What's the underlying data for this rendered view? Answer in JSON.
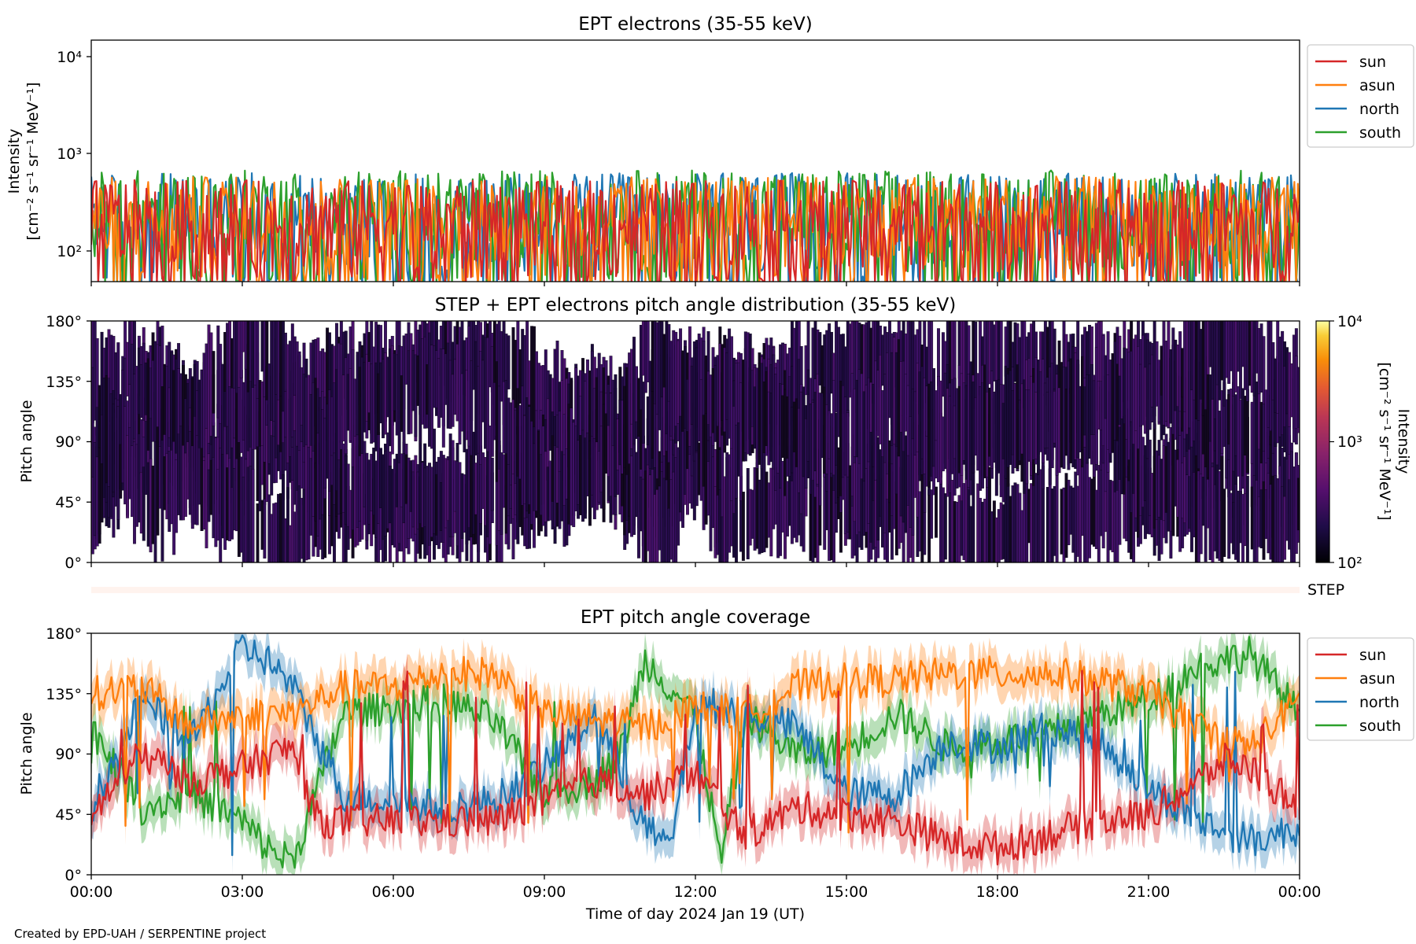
{
  "footer": {
    "credit": "Created by EPD-UAH / SERPENTINE project"
  },
  "colors": {
    "sun": "#d62728",
    "asun": "#ff7f0e",
    "north": "#1f77b4",
    "south": "#2ca02c"
  },
  "xaxis": {
    "label": "Time of day 2024 Jan 19 (UT)",
    "ticks": [
      "00:00",
      "03:00",
      "06:00",
      "09:00",
      "12:00",
      "15:00",
      "18:00",
      "21:00",
      "00:00"
    ],
    "range_hours": [
      0,
      24
    ]
  },
  "panels": {
    "intensity": {
      "title": "EPT electrons (35-55 keV)",
      "ylabel_line1": "Intensity",
      "ylabel_line2": "[cm⁻² s⁻¹ sr⁻¹ MeV⁻¹]",
      "yticks": [
        "10⁴",
        "10³",
        "10²"
      ],
      "legend": [
        "sun",
        "asun",
        "north",
        "south"
      ]
    },
    "pad": {
      "title": "STEP + EPT electrons pitch angle distribution (35-55 keV)",
      "ylabel": "Pitch angle",
      "yticks": [
        "180°",
        "135°",
        "90°",
        "45°",
        "0°"
      ],
      "colorbar": {
        "label_line1": "Intensity",
        "label_line2": "[cm⁻² s⁻¹ sr⁻¹ MeV⁻¹]",
        "ticks": [
          "10⁴",
          "10³",
          "10²"
        ]
      }
    },
    "step": {
      "label": "STEP"
    },
    "coverage": {
      "title": "EPT pitch angle coverage",
      "ylabel": "Pitch angle",
      "yticks": [
        "180°",
        "135°",
        "90°",
        "45°",
        "0°"
      ],
      "legend": [
        "sun",
        "asun",
        "north",
        "south"
      ]
    }
  },
  "chart_data": [
    {
      "type": "line",
      "title": "EPT electrons (35-55 keV)",
      "xlabel": "",
      "ylabel": "Intensity [cm⁻² s⁻¹ sr⁻¹ MeV⁻¹]",
      "yscale": "log",
      "ylim": [
        50,
        15000
      ],
      "xlim_hours": [
        0,
        24
      ],
      "legend_position": "outside-right-top",
      "series": [
        {
          "name": "sun",
          "typical_range": [
            50,
            550
          ]
        },
        {
          "name": "asun",
          "typical_range": [
            50,
            600
          ]
        },
        {
          "name": "north",
          "typical_range": [
            50,
            650
          ]
        },
        {
          "name": "south",
          "typical_range": [
            50,
            700
          ]
        }
      ]
    },
    {
      "type": "heatmap",
      "title": "STEP + EPT electrons pitch angle distribution (35-55 keV)",
      "ylabel": "Pitch angle",
      "ylim_deg": [
        0,
        180
      ],
      "color_scale": "log",
      "color_range": [
        100,
        10000
      ],
      "colormap": "inferno"
    },
    {
      "type": "line",
      "title": "EPT pitch angle coverage",
      "xlabel": "Time of day 2024 Jan 19 (UT)",
      "ylabel": "Pitch angle",
      "ylim_deg": [
        0,
        180
      ],
      "xlim_hours": [
        0,
        24
      ],
      "legend_position": "outside-right-top",
      "series": [
        {
          "name": "sun",
          "x": [
            0,
            1,
            2,
            3,
            4,
            4.5,
            6,
            8,
            9,
            10,
            11,
            12,
            13,
            14,
            15,
            16,
            17,
            18,
            19,
            20,
            21,
            22,
            22.5,
            23,
            24
          ],
          "y": [
            45,
            90,
            70,
            80,
            95,
            40,
            40,
            40,
            55,
            70,
            60,
            75,
            30,
            50,
            45,
            40,
            25,
            20,
            30,
            40,
            45,
            70,
            85,
            80,
            50
          ]
        },
        {
          "name": "asun",
          "x": [
            0,
            1,
            2,
            3,
            4,
            5,
            6,
            7,
            8,
            9,
            10,
            11,
            12,
            13,
            14,
            15,
            16,
            17,
            18,
            19,
            20,
            21,
            22,
            23,
            24
          ],
          "y": [
            135,
            140,
            110,
            120,
            120,
            140,
            140,
            150,
            150,
            120,
            115,
            110,
            125,
            120,
            140,
            145,
            145,
            150,
            150,
            150,
            145,
            135,
            110,
            95,
            130
          ]
        },
        {
          "name": "north",
          "x": [
            0,
            1,
            2,
            3,
            3.5,
            4,
            5,
            6,
            7,
            8,
            9,
            10,
            11,
            11.5,
            12,
            13,
            14,
            15,
            16,
            17,
            18,
            19,
            20,
            21,
            22,
            23,
            24
          ],
          "y": [
            50,
            130,
            100,
            170,
            160,
            140,
            60,
            55,
            50,
            55,
            80,
            120,
            35,
            20,
            130,
            120,
            110,
            60,
            60,
            100,
            95,
            110,
            100,
            65,
            40,
            25,
            35
          ]
        },
        {
          "name": "south",
          "x": [
            0,
            1,
            2,
            3,
            3.5,
            4,
            5,
            6,
            7,
            8,
            9,
            10,
            10.5,
            11,
            12,
            12.5,
            13,
            14,
            15,
            16,
            17,
            18,
            19,
            20,
            21,
            22,
            23,
            24
          ],
          "y": [
            110,
            50,
            60,
            40,
            20,
            10,
            120,
            125,
            130,
            115,
            60,
            70,
            90,
            160,
            120,
            10,
            120,
            90,
            95,
            120,
            95,
            100,
            105,
            120,
            130,
            155,
            165,
            120
          ]
        }
      ]
    }
  ]
}
